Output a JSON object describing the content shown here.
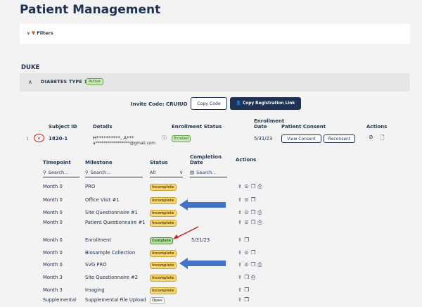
{
  "page_title": "Patient Management",
  "filters": {
    "label": "Filters"
  },
  "org": {
    "name": "DUKE"
  },
  "study": {
    "name": "DIABETES TYPE 1",
    "status": "Active"
  },
  "invite": {
    "label": "Invite Code: CRUIUO",
    "copy_code": "Copy Code",
    "copy_registration": "Copy Registration Link"
  },
  "subjects_table": {
    "headers": {
      "subject_id": "Subject ID",
      "details": "Details",
      "enrollment_status": "Enrollment Status",
      "enrollment_date_1": "Enrollment",
      "enrollment_date_2": "Date",
      "patient_consent": "Patient Consent",
      "actions": "Actions"
    },
    "row": {
      "index": "1",
      "subject_id": "1820-1",
      "name": "H**********, A***",
      "email": "a*****************@gmail.com",
      "status": "Enrolled",
      "enrollment_date": "5/31/23",
      "view_consent": "View Consent",
      "reconsent": "Reconsent"
    }
  },
  "milestones": {
    "headers": {
      "timepoint": "Timepoint",
      "milestone": "Milestone",
      "status": "Status",
      "completion_1": "Completion",
      "completion_2": "Date",
      "actions": "Actions"
    },
    "search_placeholder": "Search...",
    "status_filter": "All",
    "rows": [
      {
        "timepoint": "Month 0",
        "milestone": "PRO",
        "status": "Incomplete",
        "date": ""
      },
      {
        "timepoint": "Month 0",
        "milestone": "Office Visit #1",
        "status": "Incomplete",
        "date": ""
      },
      {
        "timepoint": "Month 0",
        "milestone": "Site Questionnaire #1",
        "status": "Incomplete",
        "date": ""
      },
      {
        "timepoint": "Month 0",
        "milestone": "Patient Questionnaire #1",
        "status": "Incomplete",
        "date": ""
      },
      {
        "timepoint": "Month 0",
        "milestone": "Enrollment",
        "status": "Complete",
        "date": "5/31/23"
      },
      {
        "timepoint": "Month 0",
        "milestone": "Biosample Collection",
        "status": "Incomplete",
        "date": ""
      },
      {
        "timepoint": "Month 0",
        "milestone": "SVG PRO",
        "status": "Incomplete",
        "date": ""
      },
      {
        "timepoint": "Month 3",
        "milestone": "Site Questionnaire #2",
        "status": "Incomplete",
        "date": ""
      },
      {
        "timepoint": "Month 3",
        "milestone": "Imaging",
        "status": "Incomplete",
        "date": ""
      },
      {
        "timepoint": "Supplemental",
        "milestone": "Supplemental File Upload",
        "status": "Open",
        "date": ""
      }
    ]
  },
  "colors": {
    "primary": "#1f3354",
    "annotation_arrow": "#4472c4",
    "annotation_red": "#c62828"
  }
}
